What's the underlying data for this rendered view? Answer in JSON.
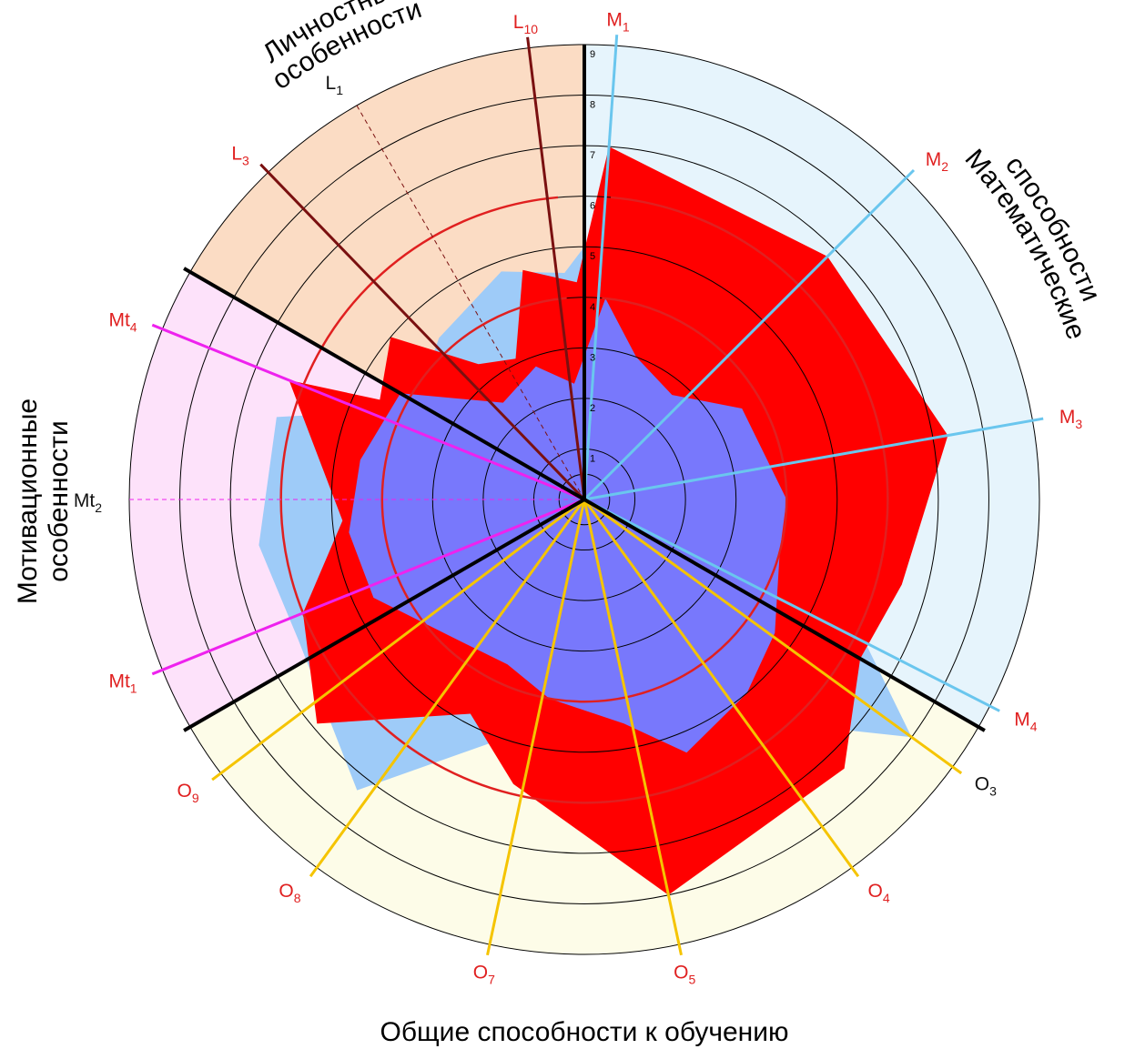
{
  "chart_data": {
    "type": "radar",
    "r_range": [
      0,
      9
    ],
    "ticks": [
      "1",
      "2",
      "3",
      "4",
      "5",
      "6",
      "7",
      "8",
      "9"
    ],
    "sectors": [
      {
        "name": "Математические способности",
        "from": 0,
        "to": 120,
        "color": "#e6f4fc"
      },
      {
        "name": "Общие способности к обучению",
        "from": 120,
        "to": 240,
        "color": "#fdfce8"
      },
      {
        "name": "Мотивационные особенности",
        "from": 240,
        "to": 300,
        "color": "#fde2fa"
      },
      {
        "name": "Личностные особенности",
        "from": 300,
        "to": 360,
        "color": "#fbdcc4"
      }
    ],
    "axes": [
      {
        "base": "M",
        "sub": "1",
        "angle": 4,
        "color": "#6ac6ee",
        "label_color": "#e02020",
        "dashed": false
      },
      {
        "base": "M",
        "sub": "2",
        "angle": 45,
        "color": "#6ac6ee",
        "label_color": "#e02020",
        "dashed": false
      },
      {
        "base": "M",
        "sub": "3",
        "angle": 80,
        "color": "#6ac6ee",
        "label_color": "#e02020",
        "dashed": false
      },
      {
        "base": "M",
        "sub": "4",
        "angle": 117,
        "color": "#6ac6ee",
        "label_color": "#e02020",
        "dashed": false
      },
      {
        "base": "O",
        "sub": "3",
        "angle": 126,
        "color": "#f5c400",
        "label_color": "#111111",
        "dashed": false
      },
      {
        "base": "O",
        "sub": "4",
        "angle": 144,
        "color": "#f5c400",
        "label_color": "#e02020",
        "dashed": false
      },
      {
        "base": "O",
        "sub": "5",
        "angle": 168,
        "color": "#f5c400",
        "label_color": "#e02020",
        "dashed": false
      },
      {
        "base": "O",
        "sub": "7",
        "angle": 192,
        "color": "#f5c400",
        "label_color": "#e02020",
        "dashed": false
      },
      {
        "base": "O",
        "sub": "8",
        "angle": 216,
        "color": "#f5c400",
        "label_color": "#e02020",
        "dashed": false
      },
      {
        "base": "O",
        "sub": "9",
        "angle": 233,
        "color": "#f5c400",
        "label_color": "#e02020",
        "dashed": false
      },
      {
        "base": "Mt",
        "sub": "1",
        "angle": 248,
        "color": "#ee22ee",
        "label_color": "#e02020",
        "dashed": false
      },
      {
        "base": "Mt",
        "sub": "2",
        "angle": 270,
        "color": "#ee22ee",
        "label_color": "#111111",
        "dashed": true
      },
      {
        "base": "Mt",
        "sub": "4",
        "angle": 292,
        "color": "#ee22ee",
        "label_color": "#e02020",
        "dashed": false
      },
      {
        "base": "L",
        "sub": "3",
        "angle": 316,
        "color": "#7a1010",
        "label_color": "#e02020",
        "dashed": false
      },
      {
        "base": "L",
        "sub": "1",
        "angle": 330,
        "color": "#7a1010",
        "label_color": "#111111",
        "dashed": true
      },
      {
        "base": "L",
        "sub": "10",
        "angle": 353,
        "color": "#7a1010",
        "label_color": "#e02020",
        "dashed": false
      }
    ],
    "series": [
      {
        "color": "#9ecbf8",
        "points": [
          [
            0,
            5
          ],
          [
            25,
            2.5
          ],
          [
            45,
            4.4
          ],
          [
            80,
            5.5
          ],
          [
            110,
            5.4
          ],
          [
            126,
            8
          ],
          [
            132,
            6.8
          ],
          [
            145,
            6.3
          ],
          [
            168,
            5.4
          ],
          [
            192,
            4.6
          ],
          [
            218,
            7.3
          ],
          [
            244,
            6.3
          ],
          [
            262,
            6.5
          ],
          [
            285,
            6.3
          ],
          [
            298,
            3.8
          ],
          [
            318,
            4.3
          ],
          [
            340,
            4.8
          ],
          [
            355,
            4.5
          ]
        ]
      },
      {
        "color": "#ff0000",
        "points": [
          [
            4,
            7
          ],
          [
            45,
            6.8
          ],
          [
            80,
            7.3
          ],
          [
            105,
            6.5
          ],
          [
            120,
            6.3
          ],
          [
            136,
            7.4
          ],
          [
            168,
            8
          ],
          [
            194,
            5.8
          ],
          [
            208,
            4.8
          ],
          [
            230,
            6.9
          ],
          [
            248,
            6
          ],
          [
            265,
            4.8
          ],
          [
            292,
            6.3
          ],
          [
            296,
            4.5
          ],
          [
            310,
            5
          ],
          [
            322,
            3.4
          ],
          [
            334,
            3.1
          ],
          [
            345,
            4.7
          ],
          [
            358,
            4.3
          ]
        ]
      },
      {
        "color": "#7878fc",
        "points": [
          [
            6,
            4
          ],
          [
            20,
            3
          ],
          [
            40,
            2.7
          ],
          [
            60,
            3.6
          ],
          [
            90,
            4
          ],
          [
            105,
            4
          ],
          [
            125,
            4.6
          ],
          [
            140,
            5
          ],
          [
            158,
            5.4
          ],
          [
            170,
            4.5
          ],
          [
            190,
            4
          ],
          [
            205,
            3.6
          ],
          [
            225,
            3.8
          ],
          [
            245,
            4.6
          ],
          [
            262,
            4.7
          ],
          [
            280,
            4.5
          ],
          [
            300,
            4.2
          ],
          [
            320,
            2.5
          ],
          [
            340,
            2.8
          ],
          [
            355,
            2.3
          ]
        ]
      }
    ],
    "ref_circles": [
      {
        "r": 6,
        "color": "#e02020",
        "gap_from": 355,
        "gap_to": 365
      },
      {
        "r": 4,
        "color": "#e02020",
        "gap_from": 355,
        "gap_to": 365
      }
    ],
    "separators": [
      0,
      120,
      240,
      300
    ],
    "sector_labels": [
      {
        "key": "math",
        "lines": [
          "Математические",
          "способности"
        ]
      },
      {
        "key": "general",
        "lines": [
          "Общие способности к обучению"
        ]
      },
      {
        "key": "motiv",
        "lines": [
          "Мотивационные",
          "особенности"
        ]
      },
      {
        "key": "pers",
        "lines": [
          "Личностные",
          "особенности"
        ]
      }
    ]
  }
}
